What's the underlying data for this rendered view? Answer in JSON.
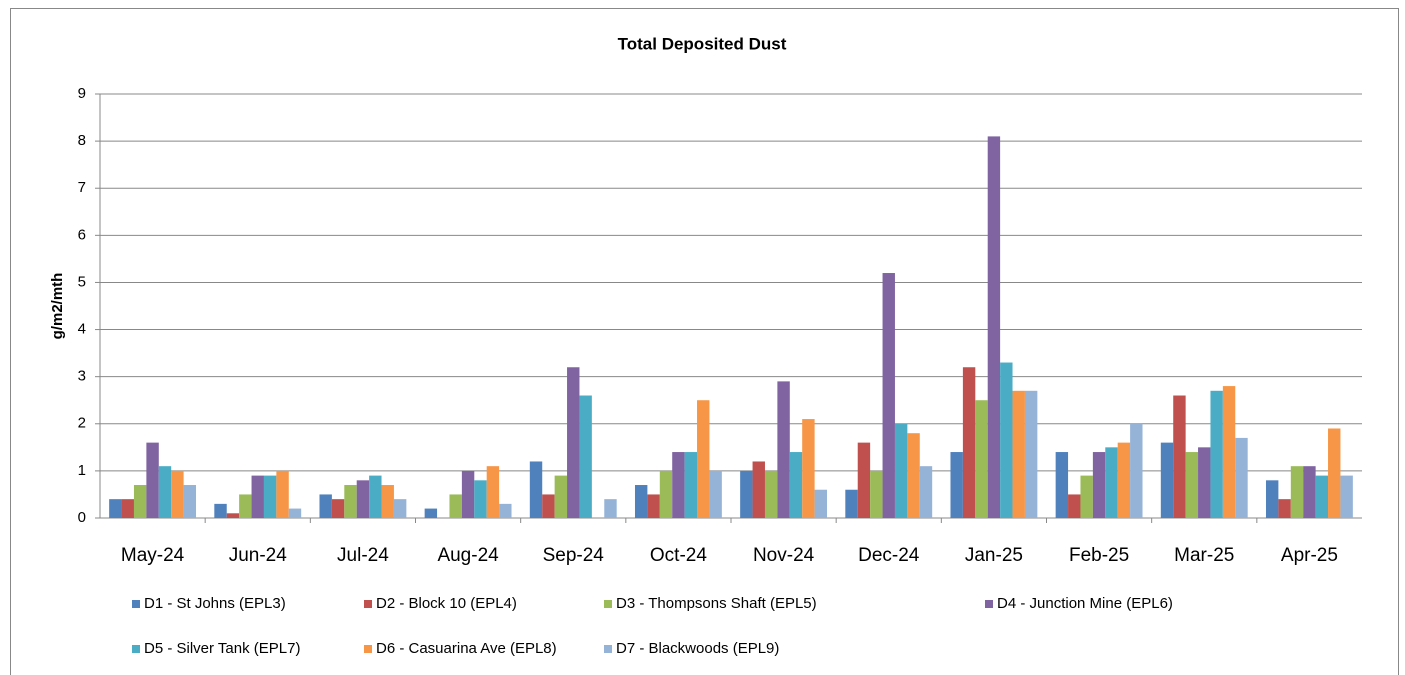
{
  "chart_data": {
    "type": "bar",
    "title": "Total Deposited Dust",
    "y_label": "g/m2/mth",
    "categories": [
      "May-24",
      "Jun-24",
      "Jul-24",
      "Aug-24",
      "Sep-24",
      "Oct-24",
      "Nov-24",
      "Dec-24",
      "Jan-25",
      "Feb-25",
      "Mar-25",
      "Apr-25"
    ],
    "series": [
      {
        "name": "D1 - St Johns (EPL3)",
        "color": "#4f81bd",
        "values": [
          0.4,
          0.3,
          0.5,
          0.2,
          1.2,
          0.7,
          1.0,
          0.6,
          1.4,
          1.4,
          1.6,
          0.8
        ]
      },
      {
        "name": "D2 - Block 10 (EPL4)",
        "color": "#c0504d",
        "values": [
          0.4,
          0.1,
          0.4,
          null,
          0.5,
          0.5,
          1.2,
          1.6,
          3.2,
          0.5,
          2.6,
          0.4
        ]
      },
      {
        "name": "D3 - Thompsons Shaft (EPL5)",
        "color": "#9bbb59",
        "values": [
          0.7,
          0.5,
          0.7,
          0.5,
          0.9,
          1.0,
          1.0,
          1.0,
          2.5,
          0.9,
          1.4,
          1.1
        ]
      },
      {
        "name": "D4 - Junction Mine (EPL6)",
        "color": "#8064a2",
        "values": [
          1.6,
          0.9,
          0.8,
          1.0,
          3.2,
          1.4,
          2.9,
          5.2,
          8.1,
          1.4,
          1.5,
          1.1
        ]
      },
      {
        "name": "D5 - Silver Tank (EPL7)",
        "color": "#4bacc6",
        "values": [
          1.1,
          0.9,
          0.9,
          0.8,
          2.6,
          1.4,
          1.4,
          2.0,
          3.3,
          1.5,
          2.7,
          0.9
        ]
      },
      {
        "name": "D6 - Casuarina Ave (EPL8)",
        "color": "#f79646",
        "values": [
          1.0,
          1.0,
          0.7,
          1.1,
          null,
          2.5,
          2.1,
          1.8,
          2.7,
          1.6,
          2.8,
          1.9
        ]
      },
      {
        "name": "D7 - Blackwoods (EPL9)",
        "color": "#95b3d7",
        "values": [
          0.7,
          0.2,
          0.4,
          0.3,
          0.4,
          1.0,
          0.6,
          1.1,
          2.7,
          2.0,
          1.7,
          0.9
        ]
      }
    ],
    "ylim": [
      0,
      9
    ],
    "yticks": [
      0,
      1,
      2,
      3,
      4,
      5,
      6,
      7,
      8,
      9
    ],
    "grid": true
  }
}
